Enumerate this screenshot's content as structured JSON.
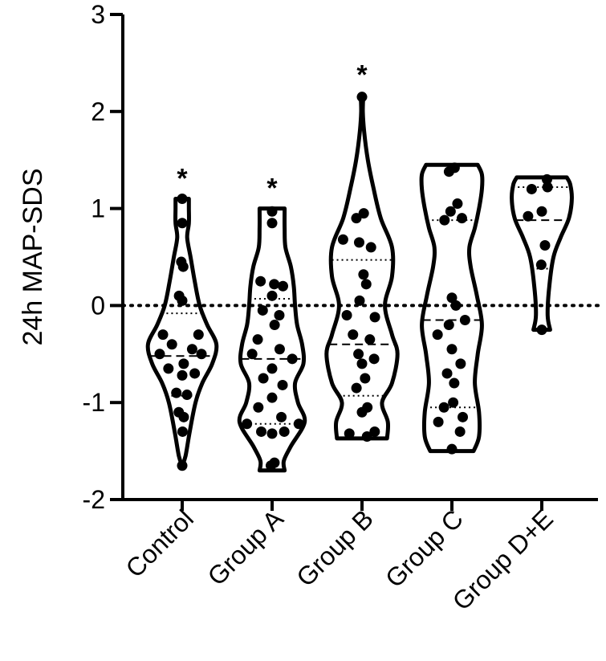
{
  "chart_data": {
    "type": "violin",
    "ylabel": "24h MAP-SDS",
    "ylim": [
      -2,
      3
    ],
    "yticks": [
      {
        "value": 3,
        "label": "3"
      },
      {
        "value": 2,
        "label": "2"
      },
      {
        "value": 1,
        "label": "1"
      },
      {
        "value": 0,
        "label": "0"
      },
      {
        "value": -1,
        "label": "-1"
      },
      {
        "value": -2,
        "label": "-2"
      }
    ],
    "reference_line": {
      "y": 0,
      "style": "dotted"
    },
    "groups": [
      {
        "label": "Control",
        "annotation": "*",
        "min": -1.65,
        "max": 1.1,
        "median": -0.52,
        "q1": -0.93,
        "q3": -0.08,
        "profile": [
          [
            -1.65,
            0.0
          ],
          [
            -1.55,
            0.08
          ],
          [
            -1.3,
            0.18
          ],
          [
            -1.0,
            0.32
          ],
          [
            -0.8,
            0.48
          ],
          [
            -0.6,
            0.72
          ],
          [
            -0.4,
            0.82
          ],
          [
            -0.2,
            0.6
          ],
          [
            0.0,
            0.42
          ],
          [
            0.25,
            0.3
          ],
          [
            0.5,
            0.2
          ],
          [
            0.7,
            0.12
          ],
          [
            0.85,
            0.16
          ],
          [
            1.0,
            0.16
          ],
          [
            1.1,
            0.16
          ]
        ],
        "points": [
          {
            "y": 1.1,
            "d": 0.0
          },
          {
            "y": 0.85,
            "d": 0.0
          },
          {
            "y": 0.45,
            "d": -0.1
          },
          {
            "y": 0.4,
            "d": 0.1
          },
          {
            "y": 0.1,
            "d": -0.2
          },
          {
            "y": 0.05,
            "d": 0.0
          },
          {
            "y": -0.3,
            "d": -0.65
          },
          {
            "y": -0.3,
            "d": 0.55
          },
          {
            "y": -0.4,
            "d": -0.3
          },
          {
            "y": -0.45,
            "d": 0.3
          },
          {
            "y": -0.5,
            "d": -0.7
          },
          {
            "y": -0.5,
            "d": 0.6
          },
          {
            "y": -0.6,
            "d": 0.05
          },
          {
            "y": -0.65,
            "d": -0.5
          },
          {
            "y": -0.7,
            "d": 0.5
          },
          {
            "y": -0.72,
            "d": 0.0
          },
          {
            "y": -0.9,
            "d": -0.35
          },
          {
            "y": -0.92,
            "d": 0.3
          },
          {
            "y": -1.1,
            "d": -0.3
          },
          {
            "y": -1.15,
            "d": 0.15
          },
          {
            "y": -1.3,
            "d": 0.05
          },
          {
            "y": -1.65,
            "d": 0.0
          }
        ]
      },
      {
        "label": "Group A",
        "annotation": "*",
        "min": -1.7,
        "max": 1.0,
        "median": -0.55,
        "q1": -1.22,
        "q3": 0.07,
        "profile": [
          [
            -1.7,
            0.3
          ],
          [
            -1.6,
            0.28
          ],
          [
            -1.45,
            0.45
          ],
          [
            -1.2,
            0.78
          ],
          [
            -1.0,
            0.62
          ],
          [
            -0.8,
            0.55
          ],
          [
            -0.6,
            0.75
          ],
          [
            -0.4,
            0.72
          ],
          [
            -0.2,
            0.6
          ],
          [
            0.0,
            0.55
          ],
          [
            0.2,
            0.52
          ],
          [
            0.4,
            0.45
          ],
          [
            0.6,
            0.32
          ],
          [
            0.8,
            0.3
          ],
          [
            1.0,
            0.3
          ]
        ],
        "points": [
          {
            "y": 0.97,
            "d": 0.0
          },
          {
            "y": 0.85,
            "d": 0.0
          },
          {
            "y": 0.25,
            "d": -0.55
          },
          {
            "y": 0.22,
            "d": 0.1
          },
          {
            "y": 0.2,
            "d": 0.5
          },
          {
            "y": 0.1,
            "d": 0.0
          },
          {
            "y": -0.05,
            "d": -0.4
          },
          {
            "y": -0.1,
            "d": 0.3
          },
          {
            "y": -0.2,
            "d": 0.1
          },
          {
            "y": -0.35,
            "d": -0.5
          },
          {
            "y": -0.45,
            "d": 0.25
          },
          {
            "y": -0.5,
            "d": -0.65
          },
          {
            "y": -0.55,
            "d": 0.65
          },
          {
            "y": -0.65,
            "d": 0.0
          },
          {
            "y": -0.75,
            "d": -0.35
          },
          {
            "y": -0.82,
            "d": 0.45
          },
          {
            "y": -0.95,
            "d": 0.0
          },
          {
            "y": -1.05,
            "d": -0.5
          },
          {
            "y": -1.15,
            "d": 0.3
          },
          {
            "y": -1.22,
            "d": -0.8
          },
          {
            "y": -1.22,
            "d": 0.85
          },
          {
            "y": -1.3,
            "d": -0.4
          },
          {
            "y": -1.3,
            "d": 0.45
          },
          {
            "y": -1.32,
            "d": 0.0
          },
          {
            "y": -1.62,
            "d": 0.2
          },
          {
            "y": -1.65,
            "d": -0.1
          }
        ]
      },
      {
        "label": "Group B",
        "annotation": "*",
        "min": -1.37,
        "max": 2.17,
        "median": -0.4,
        "q1": -0.93,
        "q3": 0.47,
        "profile": [
          [
            -1.37,
            0.6
          ],
          [
            -1.2,
            0.62
          ],
          [
            -1.0,
            0.48
          ],
          [
            -0.8,
            0.72
          ],
          [
            -0.5,
            0.85
          ],
          [
            -0.3,
            0.72
          ],
          [
            0.0,
            0.55
          ],
          [
            0.3,
            0.72
          ],
          [
            0.6,
            0.72
          ],
          [
            0.9,
            0.45
          ],
          [
            1.2,
            0.28
          ],
          [
            1.5,
            0.14
          ],
          [
            1.8,
            0.05
          ],
          [
            2.0,
            0.02
          ],
          [
            2.17,
            0.03
          ]
        ],
        "points": [
          {
            "y": 2.15,
            "d": 0.0
          },
          {
            "y": 0.95,
            "d": 0.1
          },
          {
            "y": 0.9,
            "d": -0.3
          },
          {
            "y": 0.68,
            "d": -0.7
          },
          {
            "y": 0.65,
            "d": -0.1
          },
          {
            "y": 0.6,
            "d": 0.3
          },
          {
            "y": 0.32,
            "d": 0.05
          },
          {
            "y": 0.22,
            "d": 0.15
          },
          {
            "y": 0.05,
            "d": -0.1
          },
          {
            "y": -0.1,
            "d": -0.6
          },
          {
            "y": -0.12,
            "d": 0.5
          },
          {
            "y": -0.3,
            "d": -0.3
          },
          {
            "y": -0.35,
            "d": 0.25
          },
          {
            "y": -0.5,
            "d": -0.1
          },
          {
            "y": -0.55,
            "d": 0.35
          },
          {
            "y": -0.6,
            "d": 0.0
          },
          {
            "y": -0.75,
            "d": 0.1
          },
          {
            "y": -0.85,
            "d": -0.2
          },
          {
            "y": -1.05,
            "d": 0.25
          },
          {
            "y": -1.1,
            "d": 0.0
          },
          {
            "y": -1.3,
            "d": 0.5
          },
          {
            "y": -1.32,
            "d": -0.5
          },
          {
            "y": -1.35,
            "d": 0.2
          }
        ]
      },
      {
        "label": "Group C",
        "annotation": "",
        "min": -1.5,
        "max": 1.45,
        "median": -0.15,
        "q1": -1.05,
        "q3": 0.88,
        "profile": [
          [
            -1.5,
            0.52
          ],
          [
            -1.35,
            0.65
          ],
          [
            -1.1,
            0.65
          ],
          [
            -0.8,
            0.55
          ],
          [
            -0.5,
            0.62
          ],
          [
            -0.2,
            0.72
          ],
          [
            0.1,
            0.6
          ],
          [
            0.4,
            0.45
          ],
          [
            0.6,
            0.42
          ],
          [
            0.8,
            0.55
          ],
          [
            1.0,
            0.65
          ],
          [
            1.2,
            0.72
          ],
          [
            1.35,
            0.72
          ],
          [
            1.45,
            0.62
          ]
        ],
        "points": [
          {
            "y": 1.42,
            "d": 0.1
          },
          {
            "y": 1.38,
            "d": -0.1
          },
          {
            "y": 1.05,
            "d": 0.2
          },
          {
            "y": 0.97,
            "d": -0.05
          },
          {
            "y": 0.9,
            "d": 0.4
          },
          {
            "y": 0.88,
            "d": -0.3
          },
          {
            "y": 0.08,
            "d": 0.0
          },
          {
            "y": 0.0,
            "d": 0.15
          },
          {
            "y": -0.15,
            "d": 0.45
          },
          {
            "y": -0.2,
            "d": -0.1
          },
          {
            "y": -0.3,
            "d": -0.5
          },
          {
            "y": -0.45,
            "d": 0.0
          },
          {
            "y": -0.6,
            "d": 0.35
          },
          {
            "y": -0.7,
            "d": -0.2
          },
          {
            "y": -0.8,
            "d": 0.1
          },
          {
            "y": -1.0,
            "d": 0.05
          },
          {
            "y": -1.05,
            "d": -0.3
          },
          {
            "y": -1.15,
            "d": 0.4
          },
          {
            "y": -1.2,
            "d": -0.5
          },
          {
            "y": -1.3,
            "d": 0.3
          },
          {
            "y": -1.48,
            "d": 0.0
          }
        ]
      },
      {
        "label": "Group D+E",
        "annotation": "",
        "min": -0.25,
        "max": 1.32,
        "median": 0.88,
        "q1": 0.38,
        "q3": 1.22,
        "profile": [
          [
            -0.25,
            0.2
          ],
          [
            -0.1,
            0.14
          ],
          [
            0.2,
            0.18
          ],
          [
            0.5,
            0.28
          ],
          [
            0.7,
            0.45
          ],
          [
            0.9,
            0.65
          ],
          [
            1.1,
            0.72
          ],
          [
            1.25,
            0.68
          ],
          [
            1.32,
            0.6
          ]
        ],
        "points": [
          {
            "y": 1.3,
            "d": 0.2
          },
          {
            "y": 1.22,
            "d": 0.2
          },
          {
            "y": 1.2,
            "d": -0.35
          },
          {
            "y": 0.97,
            "d": 0.0
          },
          {
            "y": 0.92,
            "d": -0.5
          },
          {
            "y": 0.62,
            "d": 0.2
          },
          {
            "y": 0.42,
            "d": -0.05
          },
          {
            "y": -0.25,
            "d": 0.0
          }
        ]
      }
    ]
  }
}
